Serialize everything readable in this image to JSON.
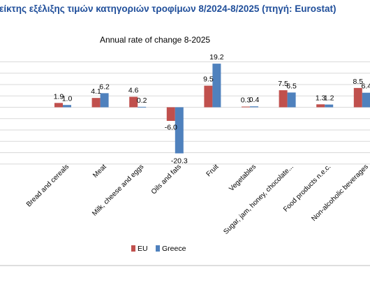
{
  "header": {
    "title": "είκτης εξέλιξης τιμών κατηγοριών τροφίμων 8/2024-8/2025 (πηγή: Eurostat)"
  },
  "chart_data": {
    "type": "bar",
    "title": "Annual rate of change 8-2025",
    "xlabel": "",
    "ylabel": "",
    "categories": [
      "Bread and cereals",
      "Meat",
      "Milk, cheese and eggs",
      "Oils and fats",
      "Fruit",
      "Vegetables",
      "Sugar, jam, honey, chocolate...",
      "Food products n.e.c.",
      "Non-alcoholic beverages"
    ],
    "series": [
      {
        "name": "EU",
        "color": "#c0504d",
        "values": [
          1.9,
          4.1,
          4.6,
          -6.0,
          9.5,
          0.3,
          7.5,
          1.3,
          8.5
        ]
      },
      {
        "name": "Greece",
        "color": "#4f81bd",
        "values": [
          1.0,
          6.2,
          0.2,
          -20.3,
          19.2,
          0.4,
          6.5,
          1.2,
          6.4
        ]
      }
    ],
    "value_labels": [
      [
        "1.9",
        "4.1",
        "4.6",
        "-6.0",
        "9.5",
        "0.3",
        "7.5",
        "1.3",
        "8.5"
      ],
      [
        "1.0",
        "6.2",
        "0.2",
        "-20.3",
        "19.2",
        "0.4",
        "6.5",
        "1.2",
        "6.4"
      ]
    ],
    "ylim": [
      -25,
      20
    ],
    "grid": true,
    "legend": "bottom"
  }
}
